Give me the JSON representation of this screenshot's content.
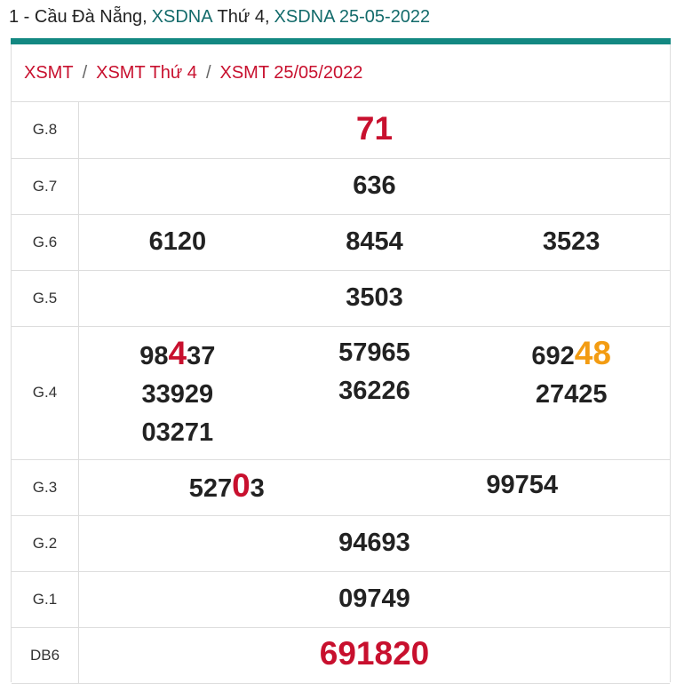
{
  "header": {
    "title": [
      {
        "text": "1 - Cầu Đà Nẵng,"
      },
      {
        "text": "XSDNA",
        "link": true
      },
      {
        "text": "Thứ 4,"
      },
      {
        "text": "XSDNA 25-05-2022",
        "link": true
      }
    ]
  },
  "breadcrumb": {
    "items": [
      "XSMT",
      "XSMT Thứ 4",
      "XSMT 25/05/2022"
    ],
    "separator": "/"
  },
  "table": {
    "rows": [
      {
        "label": "G.8",
        "cells": [
          [
            [
              {
                "text": "71",
                "color": "#c8102e"
              }
            ]
          ]
        ]
      },
      {
        "label": "G.7",
        "cells": [
          [
            [
              {
                "text": "636"
              }
            ]
          ]
        ]
      },
      {
        "label": "G.6",
        "cells": [
          [
            [
              {
                "text": "6120"
              }
            ]
          ],
          [
            [
              {
                "text": "8454"
              }
            ]
          ],
          [
            [
              {
                "text": "3523"
              }
            ]
          ]
        ]
      },
      {
        "label": "G.5",
        "cells": [
          [
            [
              {
                "text": "3503"
              }
            ]
          ]
        ]
      },
      {
        "label": "G.4",
        "cells": [
          [
            [
              {
                "text": "98"
              },
              {
                "text": "4",
                "color": "#c8102e"
              },
              {
                "text": "37"
              }
            ],
            [
              {
                "text": "33929"
              }
            ],
            [
              {
                "text": "03271"
              }
            ]
          ],
          [
            [
              {
                "text": "57965"
              }
            ],
            [
              {
                "text": "36226"
              }
            ]
          ],
          [
            [
              {
                "text": "692"
              },
              {
                "text": "48",
                "color": "#f39c12"
              }
            ],
            [
              {
                "text": "27425"
              }
            ]
          ]
        ]
      },
      {
        "label": "G.3",
        "cells": [
          [
            [
              {
                "text": "527"
              },
              {
                "text": "0",
                "color": "#c8102e"
              },
              {
                "text": "3"
              }
            ]
          ],
          [
            [
              {
                "text": "99754"
              }
            ]
          ]
        ]
      },
      {
        "label": "G.2",
        "cells": [
          [
            [
              {
                "text": "94693"
              }
            ]
          ]
        ]
      },
      {
        "label": "G.1",
        "cells": [
          [
            [
              {
                "text": "09749"
              }
            ]
          ]
        ]
      },
      {
        "label": "DB6",
        "cells": [
          [
            [
              {
                "text": "691820",
                "color": "#c8102e"
              }
            ]
          ]
        ]
      }
    ]
  }
}
